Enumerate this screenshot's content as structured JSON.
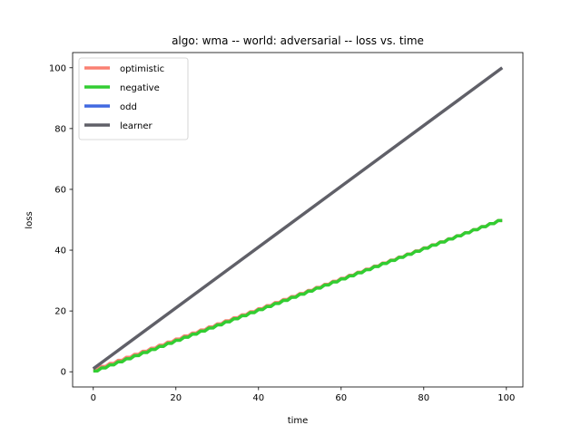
{
  "chart_data": {
    "type": "line",
    "title": "algo: wma -- world: adversarial -- loss vs. time",
    "xlabel": "time",
    "ylabel": "loss",
    "xlim": [
      -5,
      104
    ],
    "ylim": [
      -5,
      105
    ],
    "xticks": [
      "0",
      "20",
      "40",
      "60",
      "80",
      "100"
    ],
    "yticks": [
      "0",
      "20",
      "40",
      "60",
      "80",
      "100"
    ],
    "legend_position": "upper-left",
    "grid": false,
    "series": [
      {
        "name": "optimistic",
        "color": "#fa8072",
        "x": [
          0,
          99
        ],
        "y": [
          0.5,
          50
        ],
        "style": "zigzag"
      },
      {
        "name": "negative",
        "color": "#32cd32",
        "x": [
          0,
          99
        ],
        "y": [
          0,
          50
        ],
        "style": "zigzag"
      },
      {
        "name": "odd",
        "color": "#4169e1",
        "x": [
          0,
          99
        ],
        "y": [
          0,
          50
        ],
        "style": "line"
      },
      {
        "name": "learner",
        "color": "#606068",
        "x": [
          0,
          99
        ],
        "y": [
          1,
          100
        ],
        "style": "line"
      }
    ]
  }
}
